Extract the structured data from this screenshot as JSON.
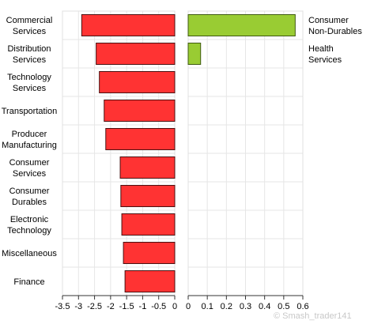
{
  "chart_data": [
    {
      "type": "bar",
      "orientation": "horizontal",
      "categories": [
        "Commercial\nServices",
        "Distribution\nServices",
        "Technology\nServices",
        "Transportation",
        "Producer\nManufacturing",
        "Consumer\nServices",
        "Consumer\nDurables",
        "Electronic\nTechnology",
        "Miscellaneous",
        "Finance"
      ],
      "values": [
        -2.9,
        -2.45,
        -2.35,
        -2.2,
        -2.15,
        -1.7,
        -1.68,
        -1.65,
        -1.6,
        -1.55
      ],
      "xlim": [
        -3.5,
        0
      ],
      "xticks": [
        "-3.5",
        "-3",
        "-2.5",
        "-2",
        "-1.5",
        "-1",
        "-0.5",
        "0"
      ],
      "title": "",
      "xlabel": "",
      "ylabel": "",
      "grid": true,
      "bar_color": "#ff3333"
    },
    {
      "type": "bar",
      "orientation": "horizontal",
      "categories": [
        "Consumer\nNon-Durables",
        "Health\nServices"
      ],
      "values": [
        0.56,
        0.065
      ],
      "xlim": [
        0,
        0.6
      ],
      "xticks": [
        "0",
        "0.1",
        "0.2",
        "0.3",
        "0.4",
        "0.5",
        "0.6"
      ],
      "title": "",
      "xlabel": "",
      "ylabel": "",
      "grid": true,
      "bar_color": "#99cc33"
    }
  ],
  "watermark": {
    "text": "© Smash_trader141",
    "icon": "copyright-icon"
  }
}
